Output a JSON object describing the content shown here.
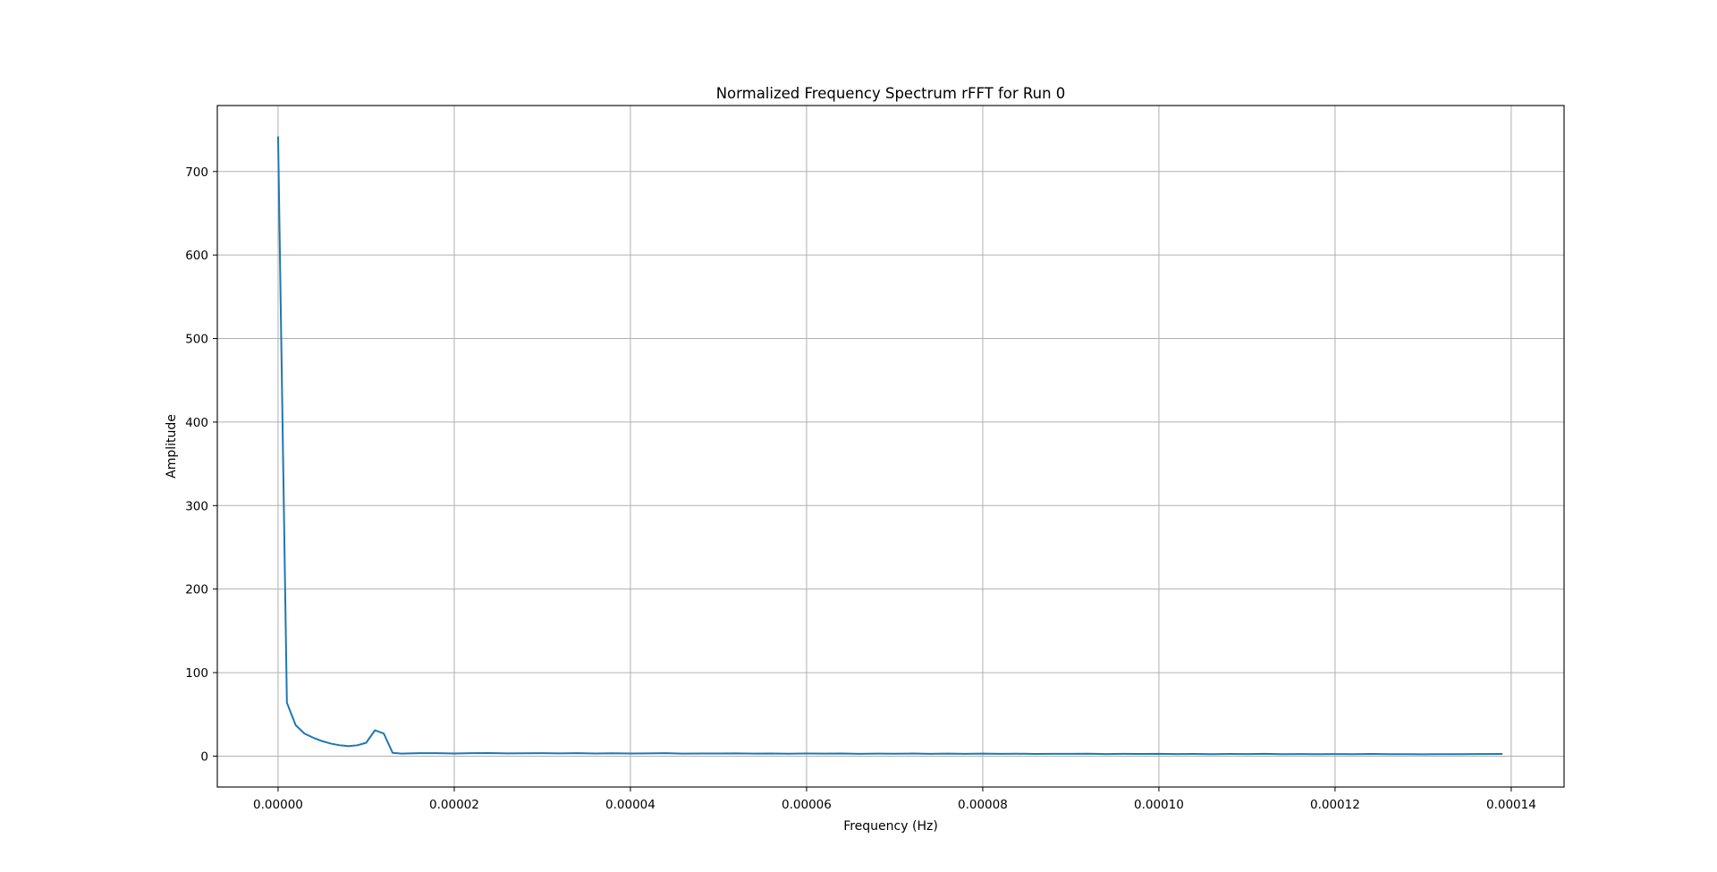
{
  "chart_data": {
    "type": "line",
    "title": "Normalized Frequency Spectrum rFFT for Run 0",
    "xlabel": "Frequency (Hz)",
    "ylabel": "Amplitude",
    "xlim": [
      -6.9e-06,
      0.000146
    ],
    "ylim": [
      -37,
      779
    ],
    "grid": true,
    "xticks": [
      0,
      2e-05,
      4e-05,
      6e-05,
      8e-05,
      0.0001,
      0.00012,
      0.00014
    ],
    "xtick_labels": [
      "0.00000",
      "0.00002",
      "0.00004",
      "0.00006",
      "0.00008",
      "0.00010",
      "0.00012",
      "0.00014"
    ],
    "yticks": [
      0,
      100,
      200,
      300,
      400,
      500,
      600,
      700
    ],
    "ytick_labels": [
      "0",
      "100",
      "200",
      "300",
      "400",
      "500",
      "600",
      "700"
    ],
    "series": [
      {
        "color": "#1f77b4",
        "x": [
          0,
          1e-06,
          2e-06,
          3e-06,
          4e-06,
          5e-06,
          6e-06,
          7e-06,
          8e-06,
          9e-06,
          1e-05,
          1.1e-05,
          1.2e-05,
          1.3e-05,
          1.4e-05,
          1.6e-05,
          1.8e-05,
          2e-05,
          2.2e-05,
          2.4e-05,
          2.6e-05,
          2.8e-05,
          3e-05,
          3.2e-05,
          3.4e-05,
          3.6e-05,
          3.8e-05,
          4e-05,
          4.2e-05,
          4.4e-05,
          4.6e-05,
          4.8e-05,
          5e-05,
          5.2e-05,
          5.4e-05,
          5.6e-05,
          5.8e-05,
          6e-05,
          6.2e-05,
          6.4e-05,
          6.6e-05,
          6.8e-05,
          7e-05,
          7.2e-05,
          7.4e-05,
          7.6e-05,
          7.8e-05,
          8e-05,
          8.2e-05,
          8.4e-05,
          8.6e-05,
          8.8e-05,
          9e-05,
          9.2e-05,
          9.4e-05,
          9.6e-05,
          9.8e-05,
          0.0001,
          0.000102,
          0.000104,
          0.000106,
          0.000108,
          0.00011,
          0.000112,
          0.000114,
          0.000116,
          0.000118,
          0.00012,
          0.000122,
          0.000124,
          0.000126,
          0.000128,
          0.00013,
          0.000132,
          0.000134,
          0.000136,
          0.000139
        ],
        "y": [
          742,
          64,
          37,
          27,
          22,
          18,
          15,
          13,
          12,
          13,
          16,
          31,
          27,
          4,
          3,
          3.5,
          3.6,
          3.2,
          3.5,
          3.7,
          3.3,
          3.4,
          3.5,
          3.3,
          3.6,
          3.2,
          3.4,
          3.1,
          3.3,
          3.5,
          3,
          3.2,
          3.1,
          3.3,
          3,
          3.2,
          2.9,
          3.1,
          3,
          3.2,
          2.8,
          3,
          2.9,
          3.1,
          2.8,
          3,
          2.7,
          3,
          2.8,
          2.9,
          2.6,
          2.8,
          2.7,
          2.9,
          2.5,
          2.7,
          2.6,
          2.8,
          2.5,
          2.6,
          2.4,
          2.6,
          2.5,
          2.7,
          2.4,
          2.5,
          2.3,
          2.5,
          2.4,
          2.6,
          2.3,
          2.4,
          2.2,
          2.4,
          2.3,
          2.5,
          2.6
        ]
      }
    ]
  }
}
